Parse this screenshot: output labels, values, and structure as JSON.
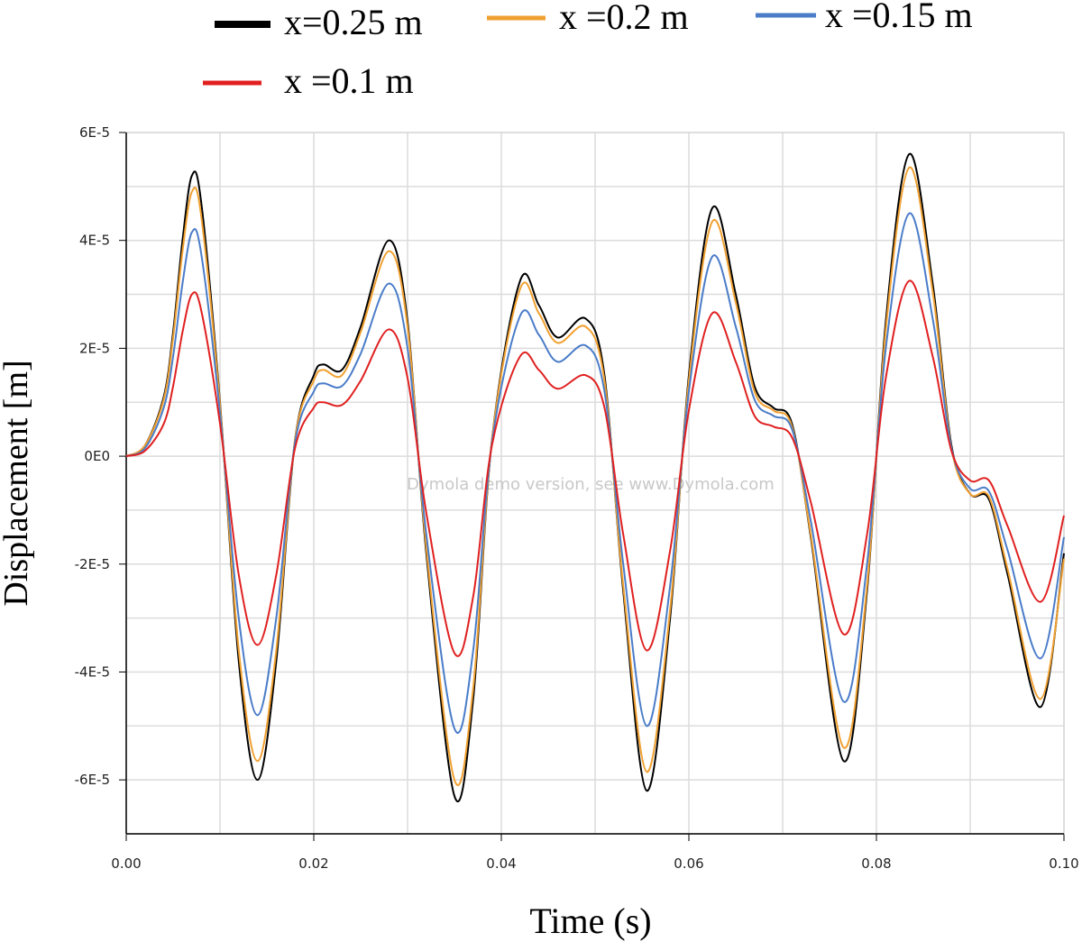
{
  "chart_data": {
    "type": "line",
    "xlabel": "Time (s)",
    "ylabel": "Displacement [m]",
    "annotation": "Dymola demo version, see www.Dymola.com",
    "x": [
      0,
      0.002,
      0.004,
      0.005,
      0.006,
      0.007,
      0.008,
      0.01,
      0.012,
      0.014,
      0.016,
      0.018,
      0.02,
      0.021,
      0.023,
      0.025,
      0.028,
      0.03,
      0.032,
      0.035,
      0.037,
      0.039,
      0.042,
      0.044,
      0.046,
      0.049,
      0.051,
      0.053,
      0.0555,
      0.058,
      0.06,
      0.0625,
      0.065,
      0.067,
      0.069,
      0.071,
      0.073,
      0.0765,
      0.079,
      0.081,
      0.0835,
      0.086,
      0.088,
      0.09,
      0.092,
      0.094,
      0.0975,
      0.1
    ],
    "series": [
      {
        "name": "x=0.25 m",
        "color": "#000000",
        "values": [
          0,
          2e-06,
          1.1e-05,
          2.3e-05,
          4e-05,
          5.2e-05,
          4.7e-05,
          1e-05,
          -3.8e-05,
          -6e-05,
          -3.8e-05,
          3e-06,
          1.5e-05,
          1.7e-05,
          1.6e-05,
          2.4e-05,
          4e-05,
          2.5e-05,
          -1.8e-05,
          -6.3e-05,
          -4.5e-05,
          3e-06,
          3.25e-05,
          2.8e-05,
          2.2e-05,
          2.55e-05,
          1.5e-05,
          -2.5e-05,
          -6.2e-05,
          -3e-05,
          1.5e-05,
          4.6e-05,
          3e-05,
          1.3e-05,
          9e-06,
          6e-06,
          -1.5e-05,
          -5.65e-05,
          -2.5e-05,
          2.5e-05,
          5.6e-05,
          3.2e-05,
          2e-06,
          -7e-06,
          -8e-06,
          -2.2e-05,
          -4.65e-05,
          -1.8e-05
        ]
      },
      {
        "name": "x =0.2 m",
        "color": "#f0a030",
        "values": [
          0,
          2e-06,
          1.05e-05,
          2.2e-05,
          3.8e-05,
          4.9e-05,
          4.45e-05,
          9.5e-06,
          -3.6e-05,
          -5.65e-05,
          -3.6e-05,
          3e-06,
          1.4e-05,
          1.6e-05,
          1.5e-05,
          2.3e-05,
          3.8e-05,
          2.4e-05,
          -1.7e-05,
          -6e-05,
          -4.3e-05,
          3e-06,
          3.1e-05,
          2.65e-05,
          2.1e-05,
          2.4e-05,
          1.4e-05,
          -2.4e-05,
          -5.85e-05,
          -2.85e-05,
          1.4e-05,
          4.35e-05,
          2.85e-05,
          1.2e-05,
          8.5e-06,
          5.5e-06,
          -1.45e-05,
          -5.4e-05,
          -2.4e-05,
          2.35e-05,
          5.35e-05,
          3.05e-05,
          1.5e-06,
          -7e-06,
          -7.5e-06,
          -2.1e-05,
          -4.5e-05,
          -1.9e-05
        ]
      },
      {
        "name": "x =0.15 m",
        "color": "#4a7cc8",
        "values": [
          0,
          1.5e-06,
          9e-06,
          1.85e-05,
          3.2e-05,
          4.15e-05,
          3.75e-05,
          8e-06,
          -3e-05,
          -4.8e-05,
          -3e-05,
          2.5e-06,
          1.2e-05,
          1.35e-05,
          1.3e-05,
          1.9e-05,
          3.2e-05,
          2e-05,
          -1.45e-05,
          -5.05e-05,
          -3.6e-05,
          2.5e-06,
          2.6e-05,
          2.25e-05,
          1.75e-05,
          2.05e-05,
          1.2e-05,
          -2e-05,
          -5e-05,
          -2.4e-05,
          1.2e-05,
          3.7e-05,
          2.4e-05,
          1.05e-05,
          7.5e-06,
          5e-06,
          -1.2e-05,
          -4.55e-05,
          -2e-05,
          2e-05,
          4.5e-05,
          2.55e-05,
          1.5e-06,
          -6e-06,
          -6.5e-06,
          -1.75e-05,
          -3.75e-05,
          -1.5e-05
        ]
      },
      {
        "name": "x =0.1 m",
        "color": "#e02020",
        "values": [
          0,
          1e-06,
          6e-06,
          1.3e-05,
          2.3e-05,
          3e-05,
          2.7e-05,
          6e-06,
          -2.2e-05,
          -3.5e-05,
          -2.2e-05,
          1.5e-06,
          9e-06,
          1e-05,
          9.5e-06,
          1.4e-05,
          2.35e-05,
          1.45e-05,
          -1.05e-05,
          -3.65e-05,
          -2.6e-05,
          2e-06,
          1.85e-05,
          1.6e-05,
          1.25e-05,
          1.5e-05,
          9e-06,
          -1.45e-05,
          -3.6e-05,
          -1.75e-05,
          8.5e-06,
          2.65e-05,
          1.75e-05,
          7.5e-06,
          5.5e-06,
          3.5e-06,
          -8.5e-06,
          -3.3e-05,
          -1.45e-05,
          1.45e-05,
          3.25e-05,
          1.85e-05,
          1e-06,
          -4.5e-06,
          -4.5e-06,
          -1.3e-05,
          -2.7e-05,
          -1.1e-05
        ]
      }
    ],
    "xlim": [
      0,
      0.1
    ],
    "ylim": [
      -7e-05,
      6e-05
    ],
    "xticks": [
      {
        "value": 0,
        "label": "0.00"
      },
      {
        "value": 0.02,
        "label": "0.02"
      },
      {
        "value": 0.04,
        "label": "0.04"
      },
      {
        "value": 0.06,
        "label": "0.06"
      },
      {
        "value": 0.08,
        "label": "0.08"
      },
      {
        "value": 0.1,
        "label": "0.10"
      }
    ],
    "yticks": [
      {
        "value": -6e-05,
        "label": "-6E-5"
      },
      {
        "value": -4e-05,
        "label": "-4E-5"
      },
      {
        "value": -2e-05,
        "label": "-2E-5"
      },
      {
        "value": 0,
        "label": "0E0"
      },
      {
        "value": 2e-05,
        "label": "2E-5"
      },
      {
        "value": 4e-05,
        "label": "4E-5"
      },
      {
        "value": 6e-05,
        "label": "6E-5"
      }
    ],
    "x_minor_gridlines": [
      0.01,
      0.03,
      0.05,
      0.07,
      0.09
    ],
    "y_minor_gridlines": [
      -7e-05,
      -5e-05,
      -3e-05,
      -1e-05,
      1e-05,
      3e-05,
      5e-05
    ],
    "grid": true
  }
}
